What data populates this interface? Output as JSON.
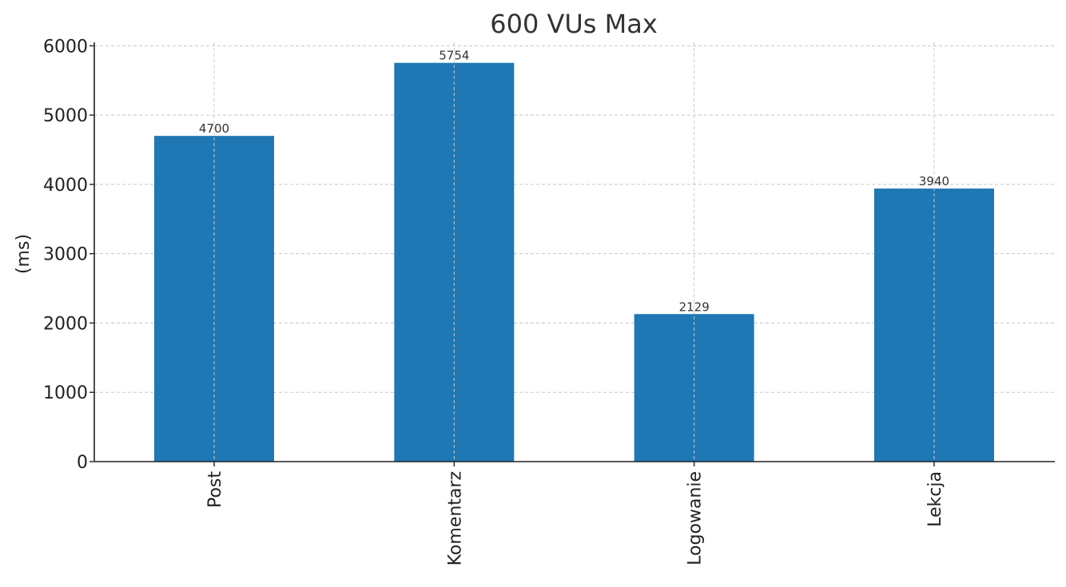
{
  "chart_data": {
    "type": "bar",
    "title": "600 VUs Max",
    "xlabel": "",
    "ylabel": "(ms)",
    "categories": [
      "Post",
      "Komentarz",
      "Logowanie",
      "Lekcja"
    ],
    "values": [
      4700,
      5754,
      2129,
      3940
    ],
    "data_labels": [
      "4700",
      "5754",
      "2129",
      "3940"
    ],
    "ylim": [
      0,
      6050
    ],
    "yticks": [
      0,
      1000,
      2000,
      3000,
      4000,
      5000,
      6000
    ],
    "ytick_labels": [
      "0",
      "1000",
      "2000",
      "3000",
      "4000",
      "5000",
      "6000"
    ],
    "grid": true,
    "bar_color": "#1f77b4"
  }
}
